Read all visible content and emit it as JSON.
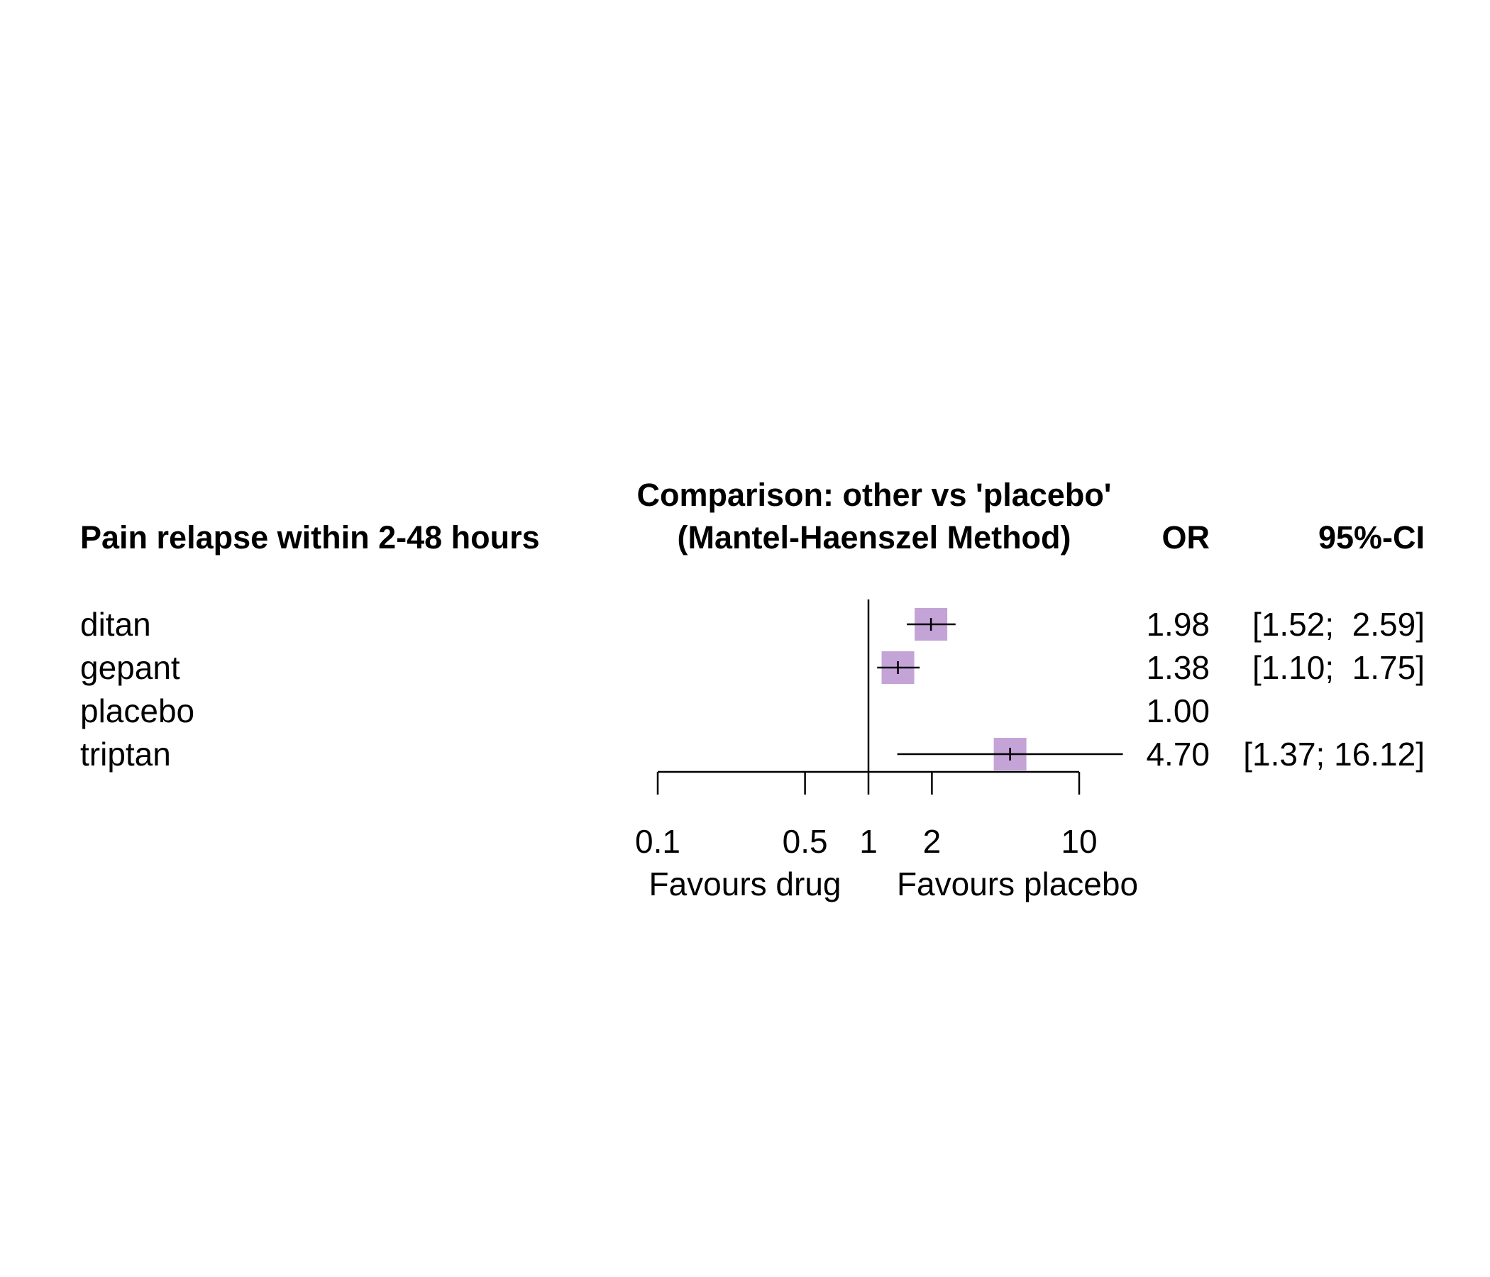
{
  "chart_data": {
    "type": "forest",
    "headers": {
      "study": "Pain relapse within 2-48 hours",
      "plot_title_line1": "Comparison: other vs 'placebo'",
      "plot_title_line2": "(Mantel-Haenszel Method)",
      "effect": "OR",
      "ci": "95%-CI"
    },
    "rows": [
      {
        "label": "ditan",
        "or": 1.98,
        "lower": 1.52,
        "upper": 2.59,
        "or_text": "1.98",
        "ci_text": "[1.52;  2.59]"
      },
      {
        "label": "gepant",
        "or": 1.38,
        "lower": 1.1,
        "upper": 1.75,
        "or_text": "1.38",
        "ci_text": "[1.10;  1.75]"
      },
      {
        "label": "placebo",
        "or": 1.0,
        "lower": null,
        "upper": null,
        "or_text": "1.00",
        "ci_text": ""
      },
      {
        "label": "triptan",
        "or": 4.7,
        "lower": 1.37,
        "upper": 16.12,
        "or_text": "4.70",
        "ci_text": "[1.37; 16.12]"
      }
    ],
    "x_axis": {
      "scale": "log",
      "range": [
        0.1,
        10
      ],
      "ticks": [
        0.1,
        0.5,
        1,
        2,
        10
      ],
      "tick_labels": [
        "0.1",
        "0.5",
        "1",
        "2",
        "10"
      ],
      "reference": 1
    },
    "favours_left": "Favours drug",
    "favours_right": "Favours placebo",
    "colors": {
      "box": "#c4a3d7",
      "line": "#000000"
    }
  }
}
